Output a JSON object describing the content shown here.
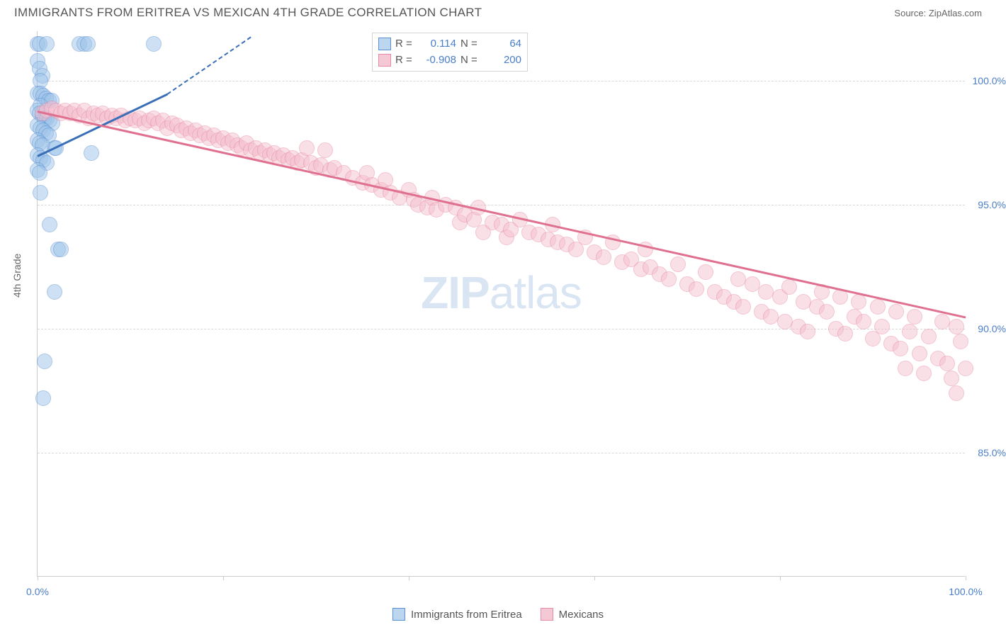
{
  "title": "IMMIGRANTS FROM ERITREA VS MEXICAN 4TH GRADE CORRELATION CHART",
  "source_label": "Source:",
  "source_name": "ZipAtlas.com",
  "ylabel": "4th Grade",
  "watermark_a": "ZIP",
  "watermark_b": "atlas",
  "chart": {
    "type": "scatter",
    "xlim": [
      0,
      100
    ],
    "ylim": [
      80,
      102
    ],
    "xticks": [
      0,
      20,
      40,
      60,
      80,
      100
    ],
    "xtick_labels": [
      "0.0%",
      "",
      "",
      "",
      "",
      "100.0%"
    ],
    "yticks": [
      85,
      90,
      95,
      100
    ],
    "ytick_labels": [
      "85.0%",
      "90.0%",
      "95.0%",
      "100.0%"
    ],
    "grid_color": "#d8d8d8",
    "axis_color": "#cccccc",
    "background_color": "#ffffff",
    "tick_label_color": "#4a7ec8",
    "marker_radius": 11,
    "marker_opacity": 0.5,
    "line_width": 2.5
  },
  "series": [
    {
      "name": "Immigrants from Eritrea",
      "color_fill": "#9ec4ea",
      "color_stroke": "#5a8fd0",
      "line_color": "#3a6fb8",
      "R": "0.114",
      "N": "64",
      "trend": {
        "x1": 0,
        "y1": 97.0,
        "x2": 14,
        "y2": 99.5,
        "dash_to_x": 23,
        "dash_to_y": 101.8
      },
      "points": [
        [
          0.0,
          101.5
        ],
        [
          0.2,
          101.5
        ],
        [
          1.0,
          101.5
        ],
        [
          4.5,
          101.5
        ],
        [
          5.0,
          101.5
        ],
        [
          5.4,
          101.5
        ],
        [
          12.5,
          101.5
        ],
        [
          0.0,
          100.8
        ],
        [
          0.2,
          100.5
        ],
        [
          0.5,
          100.2
        ],
        [
          0.3,
          100.0
        ],
        [
          0.0,
          99.5
        ],
        [
          0.3,
          99.5
        ],
        [
          0.6,
          99.4
        ],
        [
          0.9,
          99.3
        ],
        [
          1.2,
          99.2
        ],
        [
          1.5,
          99.2
        ],
        [
          0.3,
          99.0
        ],
        [
          0.0,
          98.8
        ],
        [
          0.2,
          98.7
        ],
        [
          0.5,
          98.6
        ],
        [
          0.8,
          98.5
        ],
        [
          1.0,
          98.5
        ],
        [
          1.3,
          98.4
        ],
        [
          1.6,
          98.3
        ],
        [
          0.0,
          98.2
        ],
        [
          0.3,
          98.1
        ],
        [
          0.6,
          98.0
        ],
        [
          0.9,
          97.9
        ],
        [
          1.2,
          97.8
        ],
        [
          0.0,
          97.6
        ],
        [
          0.2,
          97.5
        ],
        [
          0.5,
          97.4
        ],
        [
          1.8,
          97.3
        ],
        [
          2.0,
          97.3
        ],
        [
          5.8,
          97.1
        ],
        [
          0.0,
          97.0
        ],
        [
          0.3,
          96.9
        ],
        [
          0.6,
          96.8
        ],
        [
          1.0,
          96.7
        ],
        [
          0.0,
          96.4
        ],
        [
          0.2,
          96.3
        ],
        [
          0.3,
          95.5
        ],
        [
          1.3,
          94.2
        ],
        [
          2.2,
          93.2
        ],
        [
          2.5,
          93.2
        ],
        [
          1.8,
          91.5
        ],
        [
          0.8,
          88.7
        ],
        [
          0.6,
          87.2
        ]
      ]
    },
    {
      "name": "Mexicans",
      "color_fill": "#f5c0cf",
      "color_stroke": "#e88ba5",
      "line_color": "#e0708f",
      "R": "-0.908",
      "N": "200",
      "trend": {
        "x1": 0,
        "y1": 98.8,
        "x2": 100,
        "y2": 90.5
      },
      "points": [
        [
          0.5,
          98.7
        ],
        [
          1.0,
          98.8
        ],
        [
          1.5,
          98.9
        ],
        [
          2.0,
          98.8
        ],
        [
          2.5,
          98.7
        ],
        [
          3.0,
          98.8
        ],
        [
          3.5,
          98.7
        ],
        [
          4.0,
          98.8
        ],
        [
          4.5,
          98.6
        ],
        [
          5.0,
          98.8
        ],
        [
          5.5,
          98.5
        ],
        [
          6.0,
          98.7
        ],
        [
          6.5,
          98.6
        ],
        [
          7.0,
          98.7
        ],
        [
          7.5,
          98.5
        ],
        [
          8.0,
          98.6
        ],
        [
          8.5,
          98.5
        ],
        [
          9.0,
          98.6
        ],
        [
          9.5,
          98.4
        ],
        [
          10.0,
          98.5
        ],
        [
          10.5,
          98.4
        ],
        [
          11.0,
          98.5
        ],
        [
          11.5,
          98.3
        ],
        [
          12.0,
          98.4
        ],
        [
          12.5,
          98.5
        ],
        [
          13.0,
          98.3
        ],
        [
          13.5,
          98.4
        ],
        [
          14.0,
          98.1
        ],
        [
          14.5,
          98.3
        ],
        [
          15.0,
          98.2
        ],
        [
          15.5,
          98.0
        ],
        [
          16.0,
          98.1
        ],
        [
          16.5,
          97.9
        ],
        [
          17.0,
          98.0
        ],
        [
          17.5,
          97.8
        ],
        [
          18.0,
          97.9
        ],
        [
          18.5,
          97.7
        ],
        [
          19.0,
          97.8
        ],
        [
          19.5,
          97.6
        ],
        [
          20.0,
          97.7
        ],
        [
          20.5,
          97.5
        ],
        [
          21.0,
          97.6
        ],
        [
          21.5,
          97.4
        ],
        [
          22.0,
          97.3
        ],
        [
          22.5,
          97.5
        ],
        [
          23.0,
          97.2
        ],
        [
          23.5,
          97.3
        ],
        [
          24.0,
          97.1
        ],
        [
          24.5,
          97.2
        ],
        [
          25.0,
          97.0
        ],
        [
          25.5,
          97.1
        ],
        [
          26.0,
          96.9
        ],
        [
          26.5,
          97.0
        ],
        [
          27.0,
          96.8
        ],
        [
          27.5,
          96.9
        ],
        [
          28.0,
          96.7
        ],
        [
          28.5,
          96.8
        ],
        [
          29.0,
          97.3
        ],
        [
          29.5,
          96.7
        ],
        [
          30.0,
          96.5
        ],
        [
          30.5,
          96.6
        ],
        [
          31.0,
          97.2
        ],
        [
          31.5,
          96.4
        ],
        [
          32.0,
          96.5
        ],
        [
          33.0,
          96.3
        ],
        [
          34.0,
          96.1
        ],
        [
          35.0,
          95.9
        ],
        [
          35.5,
          96.3
        ],
        [
          36.0,
          95.8
        ],
        [
          37.0,
          95.6
        ],
        [
          37.5,
          96.0
        ],
        [
          38.0,
          95.5
        ],
        [
          39.0,
          95.3
        ],
        [
          40.0,
          95.6
        ],
        [
          40.5,
          95.2
        ],
        [
          41.0,
          95.0
        ],
        [
          42.0,
          94.9
        ],
        [
          42.5,
          95.3
        ],
        [
          43.0,
          94.8
        ],
        [
          44.0,
          95.0
        ],
        [
          45.0,
          94.9
        ],
        [
          45.5,
          94.3
        ],
        [
          46.0,
          94.6
        ],
        [
          47.0,
          94.4
        ],
        [
          47.5,
          94.9
        ],
        [
          48.0,
          93.9
        ],
        [
          49.0,
          94.3
        ],
        [
          50.0,
          94.2
        ],
        [
          50.5,
          93.7
        ],
        [
          51.0,
          94.0
        ],
        [
          52.0,
          94.4
        ],
        [
          53.0,
          93.9
        ],
        [
          54.0,
          93.8
        ],
        [
          55.0,
          93.6
        ],
        [
          55.5,
          94.2
        ],
        [
          56.0,
          93.5
        ],
        [
          57.0,
          93.4
        ],
        [
          58.0,
          93.2
        ],
        [
          59.0,
          93.7
        ],
        [
          60.0,
          93.1
        ],
        [
          61.0,
          92.9
        ],
        [
          62.0,
          93.5
        ],
        [
          63.0,
          92.7
        ],
        [
          64.0,
          92.8
        ],
        [
          65.0,
          92.4
        ],
        [
          65.5,
          93.2
        ],
        [
          66.0,
          92.5
        ],
        [
          67.0,
          92.2
        ],
        [
          68.0,
          92.0
        ],
        [
          69.0,
          92.6
        ],
        [
          70.0,
          91.8
        ],
        [
          71.0,
          91.6
        ],
        [
          72.0,
          92.3
        ],
        [
          73.0,
          91.5
        ],
        [
          74.0,
          91.3
        ],
        [
          75.0,
          91.1
        ],
        [
          75.5,
          92.0
        ],
        [
          76.0,
          90.9
        ],
        [
          77.0,
          91.8
        ],
        [
          78.0,
          90.7
        ],
        [
          78.5,
          91.5
        ],
        [
          79.0,
          90.5
        ],
        [
          80.0,
          91.3
        ],
        [
          80.5,
          90.3
        ],
        [
          81.0,
          91.7
        ],
        [
          82.0,
          90.1
        ],
        [
          82.5,
          91.1
        ],
        [
          83.0,
          89.9
        ],
        [
          84.0,
          90.9
        ],
        [
          84.5,
          91.5
        ],
        [
          85.0,
          90.7
        ],
        [
          86.0,
          90.0
        ],
        [
          86.5,
          91.3
        ],
        [
          87.0,
          89.8
        ],
        [
          88.0,
          90.5
        ],
        [
          88.5,
          91.1
        ],
        [
          89.0,
          90.3
        ],
        [
          90.0,
          89.6
        ],
        [
          90.5,
          90.9
        ],
        [
          91.0,
          90.1
        ],
        [
          92.0,
          89.4
        ],
        [
          92.5,
          90.7
        ],
        [
          93.0,
          89.2
        ],
        [
          93.5,
          88.4
        ],
        [
          94.0,
          89.9
        ],
        [
          94.5,
          90.5
        ],
        [
          95.0,
          89.0
        ],
        [
          95.5,
          88.2
        ],
        [
          96.0,
          89.7
        ],
        [
          97.0,
          88.8
        ],
        [
          97.5,
          90.3
        ],
        [
          98.0,
          88.6
        ],
        [
          98.5,
          88.0
        ],
        [
          99.0,
          90.1
        ],
        [
          99.5,
          89.5
        ],
        [
          100.0,
          88.4
        ],
        [
          99.0,
          87.4
        ]
      ]
    }
  ],
  "stats_box": {
    "rows": [
      {
        "swatch_fill": "#bdd6f0",
        "swatch_stroke": "#5a8fd0",
        "r_label": "R =",
        "r_value": "0.114",
        "n_label": "N =",
        "n_value": "64"
      },
      {
        "swatch_fill": "#f5c8d5",
        "swatch_stroke": "#e88ba5",
        "r_label": "R =",
        "r_value": "-0.908",
        "n_label": "N =",
        "n_value": "200"
      }
    ]
  },
  "legend": [
    {
      "swatch_fill": "#bdd6f0",
      "swatch_stroke": "#5a8fd0",
      "label": "Immigrants from Eritrea"
    },
    {
      "swatch_fill": "#f5c8d5",
      "swatch_stroke": "#e88ba5",
      "label": "Mexicans"
    }
  ]
}
